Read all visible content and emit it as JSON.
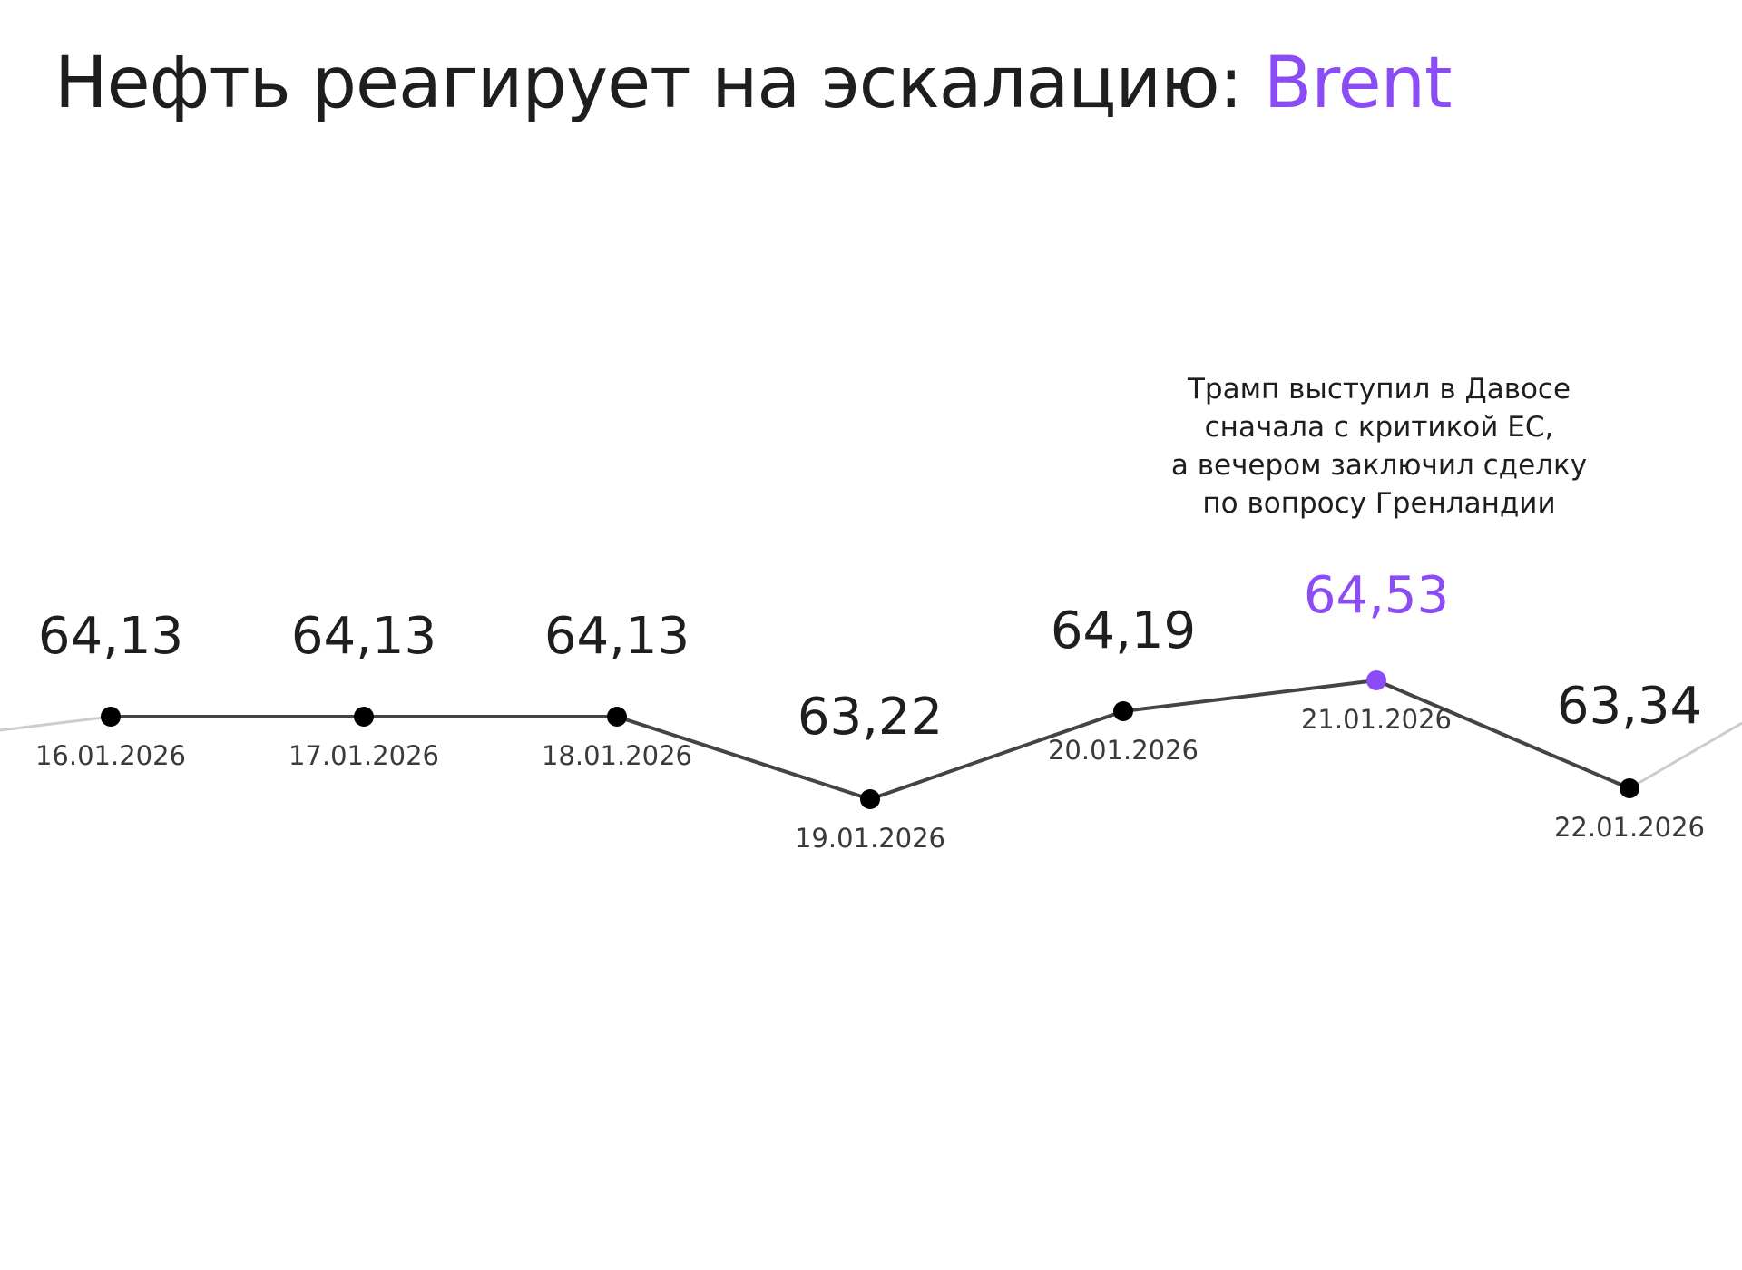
{
  "title": {
    "main": "Нефть реагирует на эскалацию: ",
    "accent": "Brent",
    "accent_color": "#8b4cf6"
  },
  "annotation": {
    "lines": [
      "Трамп выступил в Давосе",
      "сначала с критикой ЕС,",
      "а вечером заключил сделку",
      "по вопросу Гренландии"
    ]
  },
  "chart_data": {
    "type": "line",
    "title": "Нефть реагирует на эскалацию: Brent",
    "x": [
      "16.01.2026",
      "17.01.2026",
      "18.01.2026",
      "19.01.2026",
      "20.01.2026",
      "21.01.2026",
      "22.01.2026"
    ],
    "labels": [
      "64,13",
      "64,13",
      "64,13",
      "63,22",
      "64,19",
      "64,53",
      "63,34"
    ],
    "values": [
      64.13,
      64.13,
      64.13,
      63.22,
      64.19,
      64.53,
      63.34
    ],
    "highlight_index": 5,
    "highlight_color": "#8b4cf6",
    "line_color": "#444444",
    "context_line_color": "#cccccc",
    "grid": false,
    "legend": "none"
  }
}
